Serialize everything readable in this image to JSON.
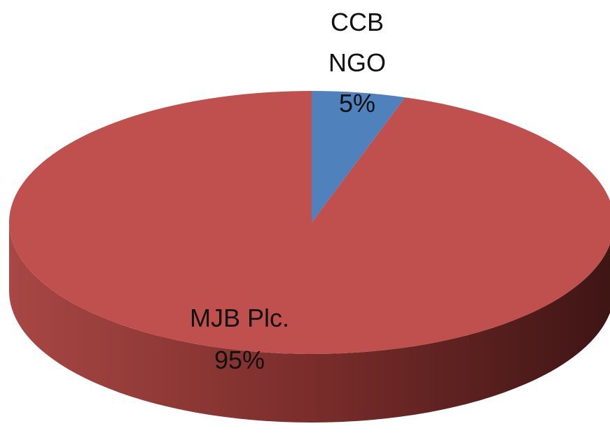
{
  "chart_data": {
    "type": "pie",
    "categories": [
      "CCB NGO",
      "MJB Plc."
    ],
    "values": [
      5,
      95
    ],
    "value_labels": [
      "5%",
      "95%"
    ],
    "colors": [
      "#4f81bd",
      "#c0504d"
    ],
    "start_angle": 0,
    "direction": "clockwise"
  }
}
